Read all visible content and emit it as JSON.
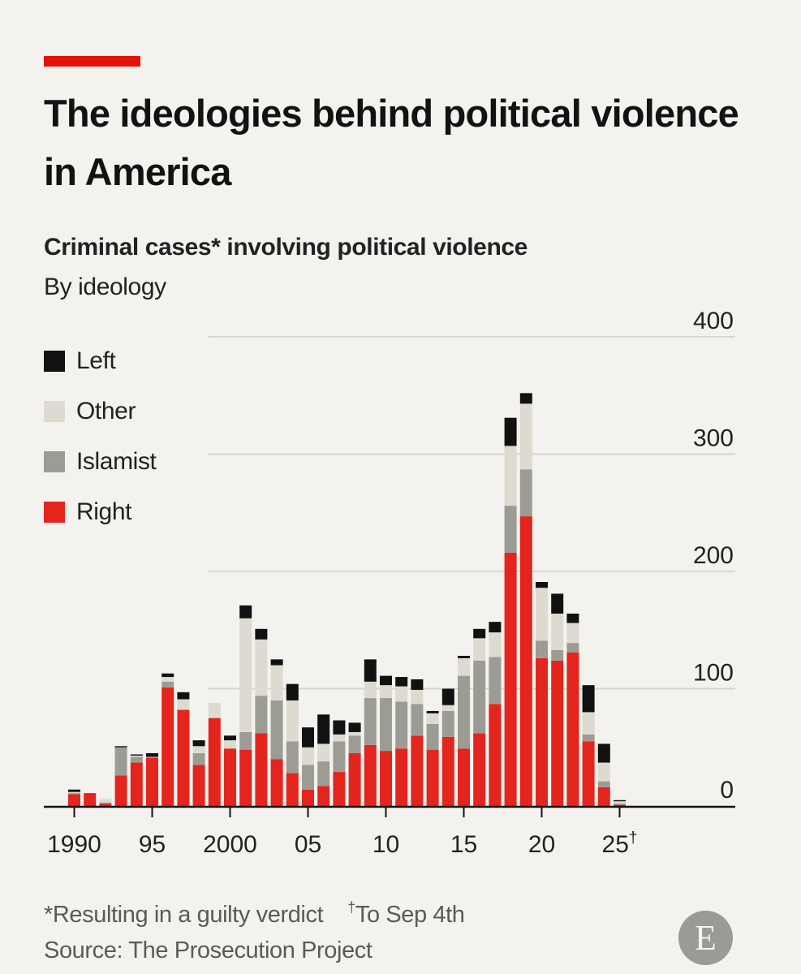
{
  "title": "The ideologies behind political violence in America",
  "subtitle": "Criminal cases* involving political violence",
  "subtitle2": "By ideology",
  "footnotes": {
    "guilty": "*Resulting in a guilty verdict",
    "dagger_mark": "†",
    "to_date": "To Sep 4th"
  },
  "source": "Source: The Prosecution Project",
  "logo_letter": "E",
  "colors": {
    "accent": "#e3120b",
    "Right": "#e3251e",
    "Islamist": "#9d9c94",
    "Other": "#dddbd0",
    "Left": "#111111",
    "gridline": "#d6d5d0",
    "axis": "#121212"
  },
  "legend": [
    {
      "name": "Left",
      "color": "#111111"
    },
    {
      "name": "Other",
      "color": "#dddbd0"
    },
    {
      "name": "Islamist",
      "color": "#9d9c94"
    },
    {
      "name": "Right",
      "color": "#e3251e"
    }
  ],
  "chart_data": {
    "type": "bar",
    "stacked": true,
    "title": "The ideologies behind political violence in America",
    "subtitle": "Criminal cases* involving political violence",
    "ylabel": "",
    "xlabel": "",
    "ylim": [
      0,
      400
    ],
    "yticks": [
      0,
      100,
      200,
      300,
      400
    ],
    "y_axis_position": "right",
    "grid": true,
    "legend_position": "top-left",
    "x_tick_labels": [
      {
        "year": 1990,
        "label": "1990",
        "sup": ""
      },
      {
        "year": 1995,
        "label": "95",
        "sup": ""
      },
      {
        "year": 2000,
        "label": "2000",
        "sup": ""
      },
      {
        "year": 2005,
        "label": "05",
        "sup": ""
      },
      {
        "year": 2010,
        "label": "10",
        "sup": ""
      },
      {
        "year": 2015,
        "label": "15",
        "sup": ""
      },
      {
        "year": 2020,
        "label": "20",
        "sup": ""
      },
      {
        "year": 2025,
        "label": "25",
        "sup": "†"
      }
    ],
    "categories": [
      1990,
      1991,
      1992,
      1993,
      1994,
      1995,
      1996,
      1997,
      1998,
      1999,
      2000,
      2001,
      2002,
      2003,
      2004,
      2005,
      2006,
      2007,
      2008,
      2009,
      2010,
      2011,
      2012,
      2013,
      2014,
      2015,
      2016,
      2017,
      2018,
      2019,
      2020,
      2021,
      2022,
      2023,
      2024,
      2025
    ],
    "series": [
      {
        "name": "Right",
        "values": [
          10,
          11,
          2,
          26,
          37,
          41,
          101,
          82,
          35,
          75,
          49,
          48,
          62,
          40,
          28,
          14,
          17,
          29,
          45,
          52,
          47,
          49,
          60,
          48,
          59,
          49,
          62,
          87,
          216,
          247,
          126,
          124,
          131,
          55,
          16,
          1
        ]
      },
      {
        "name": "Islamist",
        "values": [
          1,
          0,
          1,
          24,
          5,
          1,
          5,
          0,
          10,
          0,
          0,
          15,
          32,
          50,
          27,
          21,
          21,
          26,
          15,
          40,
          45,
          40,
          27,
          22,
          22,
          62,
          62,
          40,
          40,
          40,
          15,
          9,
          8,
          6,
          5,
          1
        ]
      },
      {
        "name": "Other",
        "values": [
          1,
          0,
          3,
          0,
          1,
          0,
          4,
          9,
          6,
          13,
          7,
          97,
          48,
          30,
          35,
          15,
          15,
          6,
          3,
          14,
          11,
          13,
          12,
          9,
          5,
          15,
          19,
          21,
          51,
          56,
          45,
          31,
          17,
          19,
          16,
          2
        ]
      },
      {
        "name": "Left",
        "values": [
          2,
          0,
          0,
          1,
          1,
          3,
          3,
          6,
          5,
          0,
          4,
          11,
          9,
          5,
          14,
          17,
          25,
          12,
          8,
          19,
          8,
          8,
          9,
          2,
          14,
          2,
          8,
          9,
          24,
          9,
          5,
          17,
          8,
          23,
          16,
          1
        ]
      }
    ]
  }
}
